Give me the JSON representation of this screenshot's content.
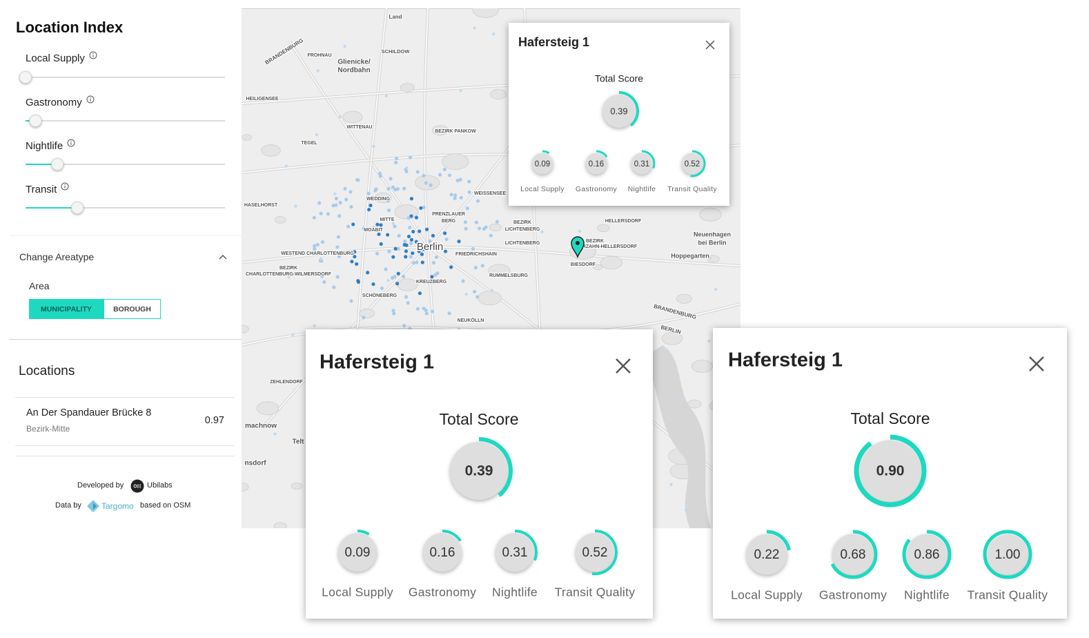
{
  "sidebar": {
    "title": "Location Index",
    "weights": [
      {
        "name": "Local Supply",
        "value": 0
      },
      {
        "name": "Gastronomy",
        "value": 0.05
      },
      {
        "name": "Nightlife",
        "value": 0.16
      },
      {
        "name": "Transit",
        "value": 0.26
      }
    ],
    "areatype": {
      "heading": "Change Areatype",
      "label": "Area",
      "options": [
        "MUNICIPALITY",
        "BOROUGH"
      ],
      "selected": 0
    },
    "locations": {
      "heading": "Locations",
      "items": [
        {
          "name": "An Der Spandauer Brücke 8",
          "district": "Bezirk-Mitte",
          "score": 0.97
        }
      ]
    },
    "footer": {
      "developed_by": "Developed by",
      "developer": "Ubilabs",
      "data_by": "Data by",
      "data_source": "Targomo",
      "based_on": "based on OSM"
    }
  },
  "map": {
    "labels": [
      "Land",
      "SCHILDOW",
      "Glienicke/",
      "Nordbahn",
      "BRANDENBURG",
      "FROHNAU",
      "HEILIGENSEE",
      "WITTENAU",
      "BEZIRK PANKOW",
      "TEGEL",
      "WEDDING",
      "WEISSENSEE",
      "HASELHORST",
      "MITTE",
      "PRENZLAUER",
      "BERG",
      "MOABIT",
      "Berlin",
      "WESTEND CHARLOTTENBURG",
      "FRIEDRICHSHAIN",
      "BEZIRK",
      "LICHTENBERG",
      "LICHTENBERG",
      "RUMMELSBURG",
      "KREUZBERG",
      "SCHÖNEBERG",
      "NEUKÖLLN",
      "HELLERSDORF",
      "BEZIRK",
      "MARZAHN-HELLERSDORF",
      "BIESDORF",
      "Neuenhagen",
      "bei Berlin",
      "Hoppegarten",
      "BRANDENBURG",
      "BERLIN",
      "ZEHLENDORF",
      "machnow",
      "Telt",
      "nsdorf",
      "BEZIRK",
      "CHARLOTTENBURG-WILMERSDORF"
    ]
  },
  "popups": [
    {
      "title": "Hafersteig 1",
      "total_label": "Total Score",
      "total": {
        "value": 0.39,
        "value_label": "0.39"
      },
      "scores": [
        {
          "name": "Local Supply",
          "value": 0.09,
          "value_label": "0.09"
        },
        {
          "name": "Gastronomy",
          "value": 0.16,
          "value_label": "0.16"
        },
        {
          "name": "Nightlife",
          "value": 0.31,
          "value_label": "0.31"
        },
        {
          "name": "Transit Quality",
          "value": 0.52,
          "value_label": "0.52"
        }
      ]
    },
    {
      "title": "Hafersteig 1",
      "total_label": "Total Score",
      "total": {
        "value": 0.39,
        "value_label": "0.39"
      },
      "scores": [
        {
          "name": "Local Supply",
          "value": 0.09,
          "value_label": "0.09"
        },
        {
          "name": "Gastronomy",
          "value": 0.16,
          "value_label": "0.16"
        },
        {
          "name": "Nightlife",
          "value": 0.31,
          "value_label": "0.31"
        },
        {
          "name": "Transit Quality",
          "value": 0.52,
          "value_label": "0.52"
        }
      ]
    },
    {
      "title": "Hafersteig 1",
      "total_label": "Total Score",
      "total": {
        "value": 0.9,
        "value_label": "0.90"
      },
      "scores": [
        {
          "name": "Local Supply",
          "value": 0.22,
          "value_label": "0.22"
        },
        {
          "name": "Gastronomy",
          "value": 0.68,
          "value_label": "0.68"
        },
        {
          "name": "Nightlife",
          "value": 0.86,
          "value_label": "0.86"
        },
        {
          "name": "Transit Quality",
          "value": 1,
          "value_label": "1.00"
        }
      ]
    }
  ]
}
